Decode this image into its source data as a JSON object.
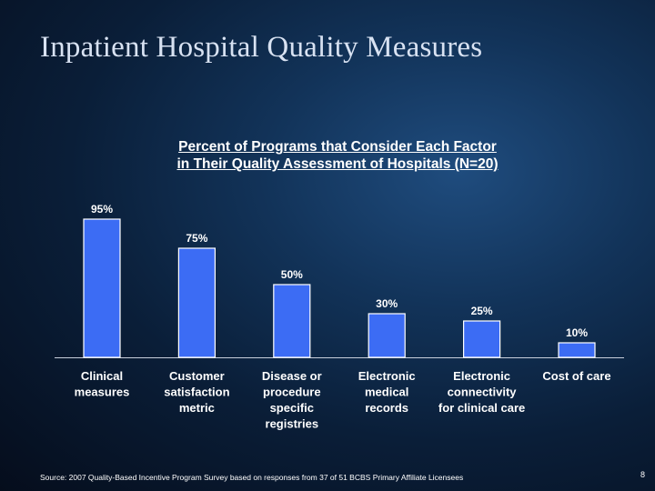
{
  "slide": {
    "title": "Inpatient Hospital Quality Measures",
    "source": "Source:  2007 Quality-Based Incentive Program Survey based on responses from 37 of 51 BCBS Primary Affiliate Licensees",
    "page_number": "8"
  },
  "chart_data": {
    "type": "bar",
    "title_line1": "Percent of Programs that Consider Each Factor",
    "title_line2": "in Their Quality Assessment of Hospitals (N=20)",
    "categories": [
      [
        "Clinical",
        "measures"
      ],
      [
        "Customer",
        "satisfaction",
        "metric"
      ],
      [
        "Disease or",
        "procedure",
        "specific",
        "registries"
      ],
      [
        "Electronic",
        "medical",
        "records"
      ],
      [
        "Electronic",
        "connectivity",
        "for clinical care"
      ],
      [
        "Cost of care"
      ]
    ],
    "values": [
      95,
      75,
      50,
      30,
      25,
      10
    ],
    "value_labels": [
      "95%",
      "75%",
      "50%",
      "30%",
      "25%",
      "10%"
    ],
    "ylim": [
      0,
      100
    ],
    "grid": false,
    "colors": {
      "bar_fill": "#3c6cf4",
      "bar_stroke": "#ffffff",
      "text": "#ffffff",
      "axis": "#c8cfdc"
    }
  }
}
